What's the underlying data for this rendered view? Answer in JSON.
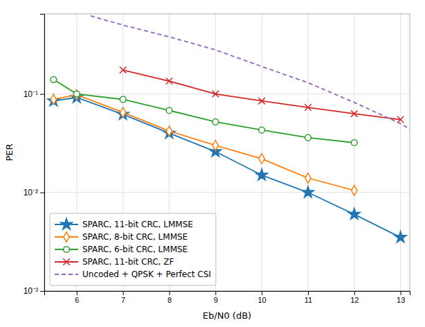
{
  "chart_data": {
    "type": "line",
    "xlabel": "Eb/N0 (dB)",
    "ylabel": "PER",
    "xlim": [
      5.3,
      13.2
    ],
    "ylim": [
      0.001,
      0.65
    ],
    "xticks": [
      6,
      7,
      8,
      9,
      10,
      11,
      12,
      13
    ],
    "yticks": [
      {
        "value": 0.001,
        "label": "10⁻³"
      },
      {
        "value": 0.01,
        "label": "10⁻²"
      },
      {
        "value": 0.1,
        "label": "10⁻¹"
      }
    ],
    "log": "y",
    "grid": true,
    "legend": "lower left",
    "series": [
      {
        "name": "SPARC, 11-bit CRC, LMMSE",
        "marker": "star",
        "x": [
          5.5,
          6,
          7,
          8,
          9,
          10,
          11,
          12,
          13
        ],
        "values": [
          0.085,
          0.092,
          0.062,
          0.04,
          0.026,
          0.015,
          0.01,
          0.006,
          0.0035
        ]
      },
      {
        "name": "SPARC, 8-bit CRC, LMMSE",
        "marker": "diamond",
        "x": [
          5.5,
          6,
          7,
          8,
          9,
          10,
          11,
          12,
          13
        ],
        "values": [
          0.088,
          0.098,
          0.065,
          0.042,
          0.03,
          0.022,
          0.014,
          0.0105,
          null
        ]
      },
      {
        "name": "SPARC, 6-bit CRC, LMMSE",
        "marker": "circle",
        "x": [
          5.5,
          6,
          7,
          8,
          9,
          10,
          11,
          12,
          13
        ],
        "values": [
          0.14,
          0.1,
          0.088,
          0.068,
          0.052,
          0.043,
          0.036,
          0.032,
          null
        ]
      },
      {
        "name": "SPARC, 11-bit CRC, ZF",
        "marker": "x",
        "x": [
          7,
          8,
          9,
          10,
          11,
          12,
          13
        ],
        "values": [
          0.175,
          0.135,
          0.1,
          0.085,
          0.073,
          0.063,
          0.055
        ]
      },
      {
        "name": "Uncoded + QPSK + Perfect CSI",
        "line_style": "dashed",
        "x": [
          6.3,
          7,
          8,
          9,
          10,
          11,
          12,
          13,
          13.2
        ],
        "values": [
          0.62,
          0.5,
          0.38,
          0.28,
          0.19,
          0.13,
          0.082,
          0.05,
          0.044
        ]
      }
    ]
  }
}
